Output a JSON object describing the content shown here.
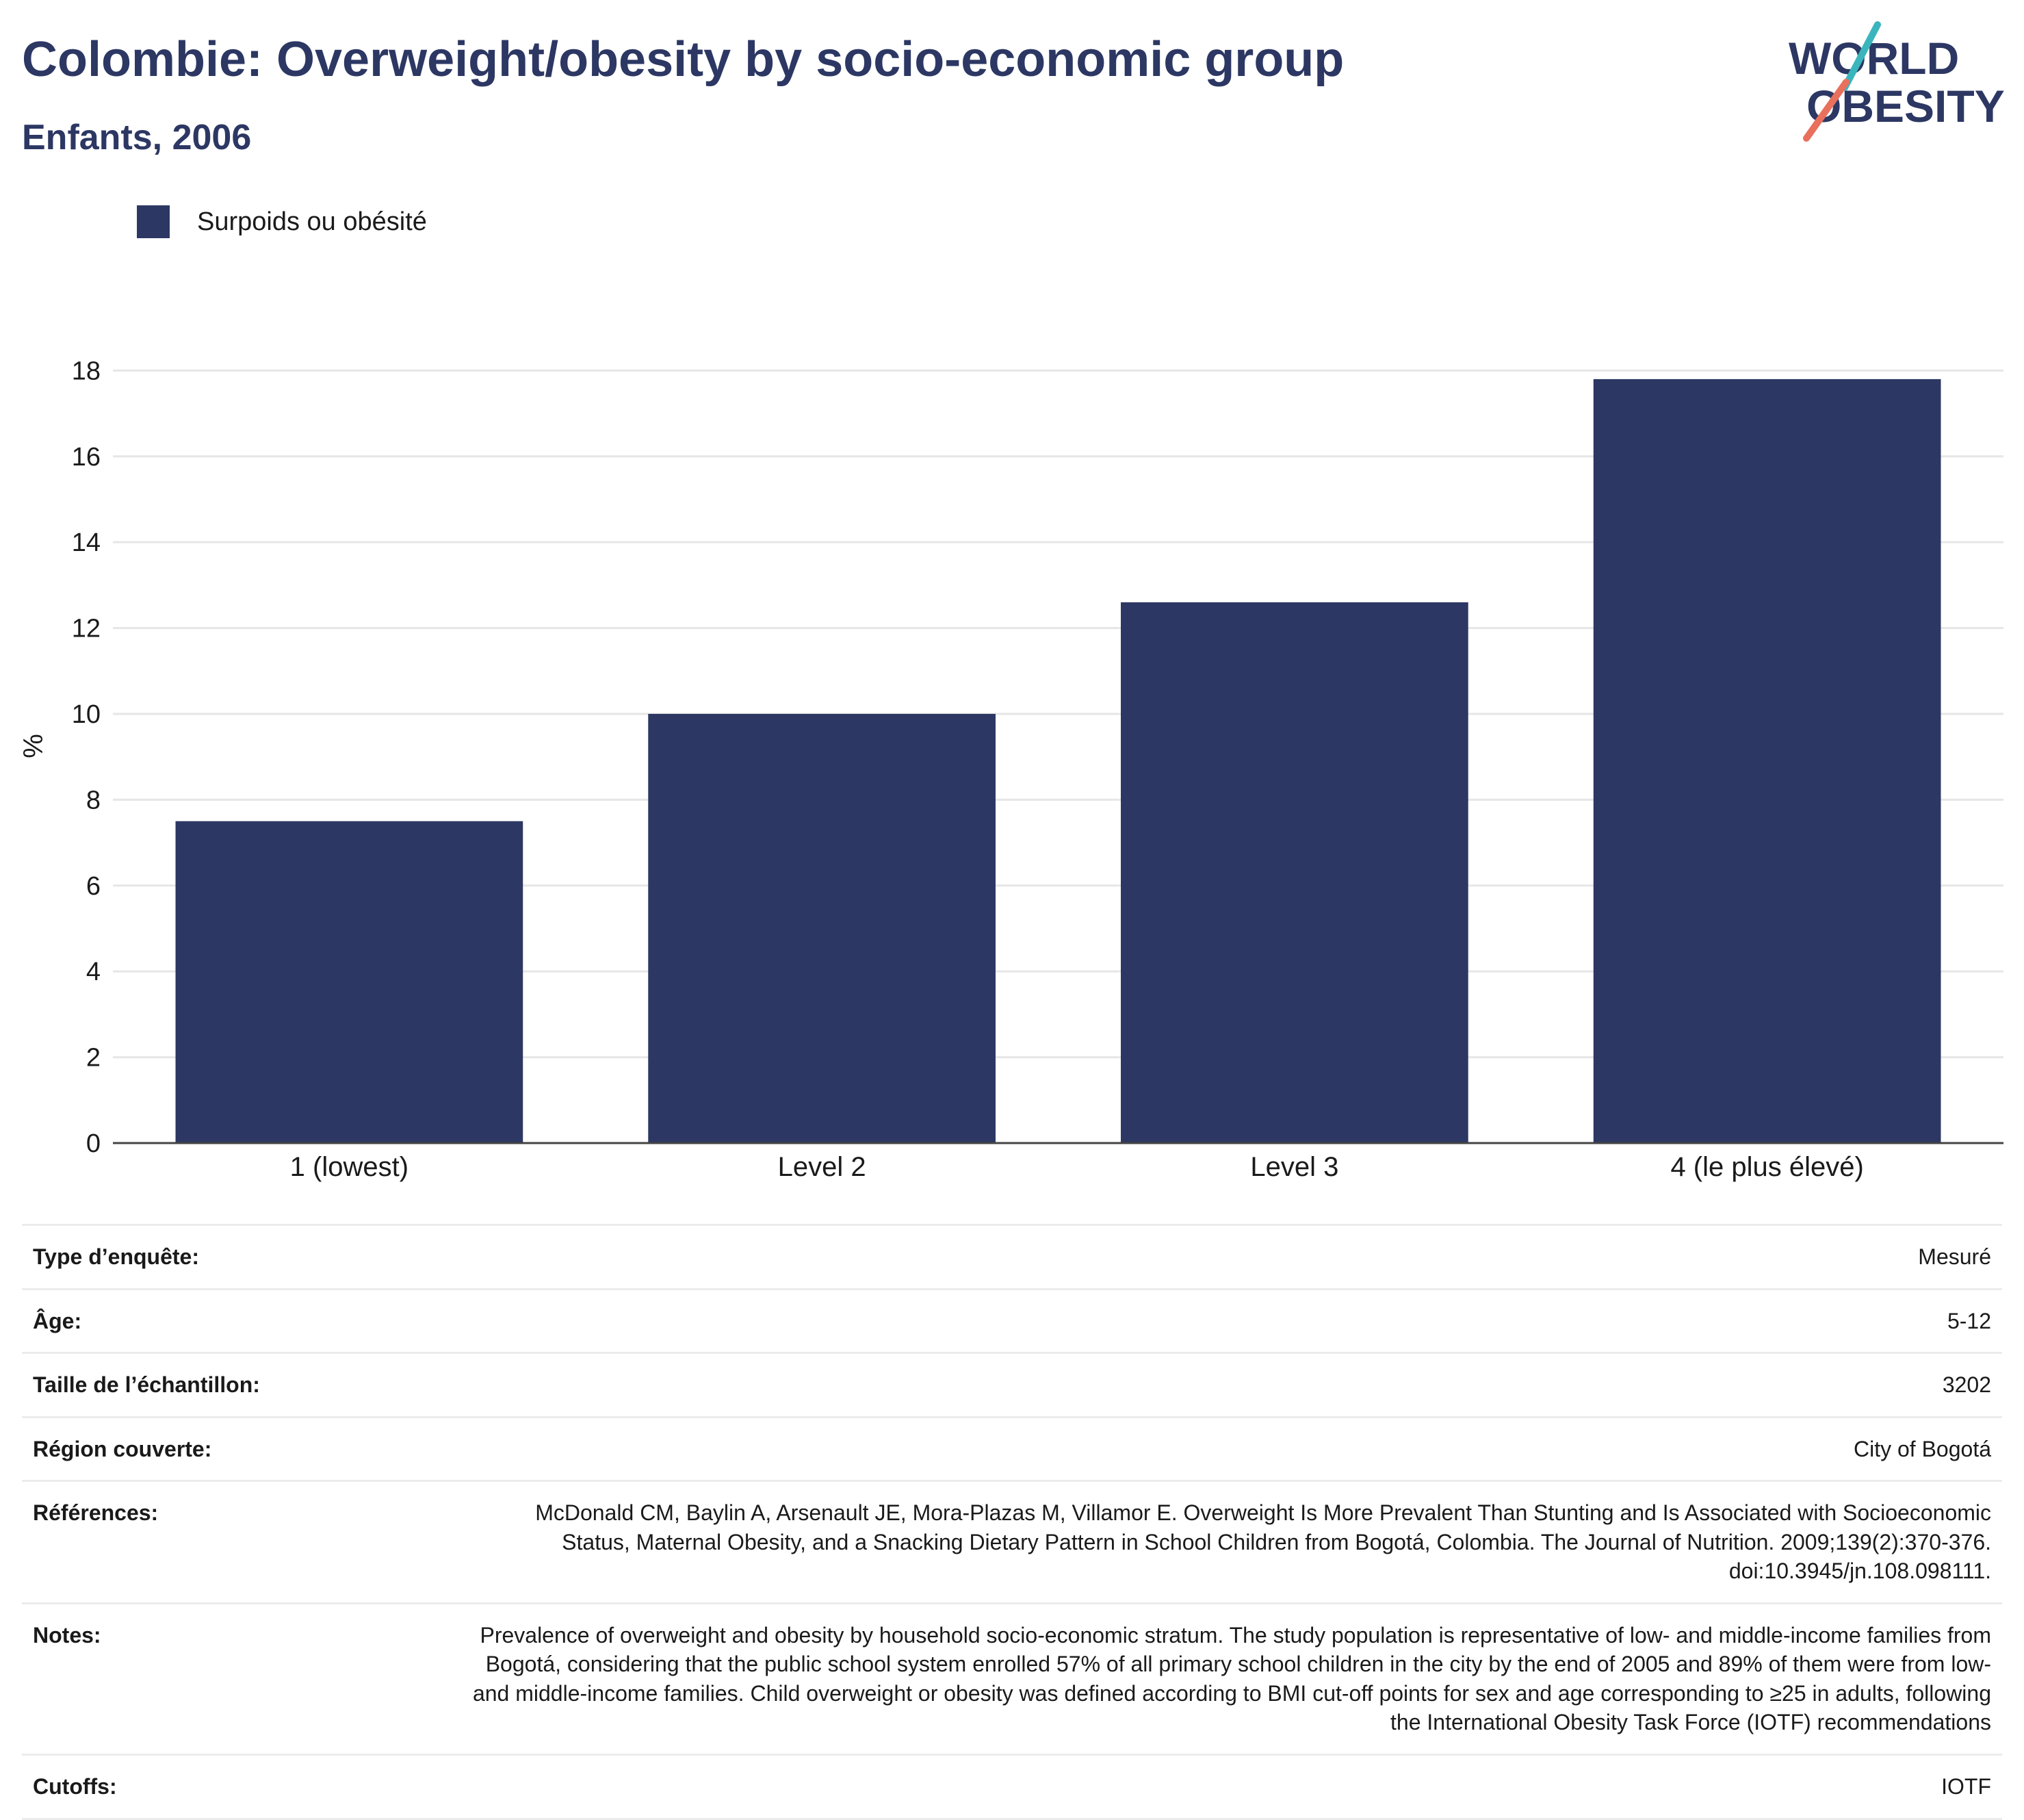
{
  "title": "Colombie: Overweight/obesity by socio-economic group",
  "subtitle": "Enfants, 2006",
  "logo": {
    "line1": "WORLD",
    "line2": "OBESITY"
  },
  "colors": {
    "bar": "#2c3763",
    "title": "#2c3763",
    "logo_text": "#2c3763",
    "logo_teal": "#3bb5bd",
    "logo_coral": "#e8705c",
    "grid": "#e6e6e6",
    "axis": "#444444"
  },
  "chart_data": {
    "type": "bar",
    "categories": [
      "1 (lowest)",
      "Level 2",
      "Level 3",
      "4 (le plus élevé)"
    ],
    "series": [
      {
        "name": "Surpoids ou obésité",
        "values": [
          7.5,
          10.0,
          12.6,
          17.8
        ]
      }
    ],
    "ylabel": "%",
    "xlabel": "",
    "ylim": [
      0,
      18.5
    ],
    "yticks": [
      0,
      2,
      4,
      6,
      8,
      10,
      12,
      14,
      16,
      18
    ],
    "grid": true,
    "legend_position": "top-left"
  },
  "info": [
    {
      "label": "Type d’enquête:",
      "value": "Mesuré"
    },
    {
      "label": "Âge:",
      "value": "5-12"
    },
    {
      "label": "Taille de l’échantillon:",
      "value": "3202"
    },
    {
      "label": "Région couverte:",
      "value": "City of Bogotá"
    },
    {
      "label": "Références:",
      "value": "McDonald CM, Baylin A, Arsenault JE, Mora-Plazas M, Villamor E. Overweight Is More Prevalent Than Stunting and Is Associated with Socioeconomic Status, Maternal Obesity, and a Snacking Dietary Pattern in School Children from Bogotá, Colombia. The Journal of Nutrition. 2009;139(2):370-376. doi:10.3945/jn.108.098111."
    },
    {
      "label": "Notes:",
      "value": "Prevalence of overweight and obesity by household socio-economic stratum. The study population is representative of low- and middle-income families from Bogotá, considering that the public school system enrolled 57% of all primary school children in the city by the end of 2005 and 89% of them were from low- and middle-income families. Child overweight or obesity was defined according to BMI cut-off points for sex and age corresponding to ≥25 in adults, following the International Obesity Task Force (IOTF) recommendations"
    },
    {
      "label": "Cutoffs:",
      "value": "IOTF"
    }
  ]
}
